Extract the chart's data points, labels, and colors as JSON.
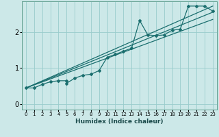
{
  "xlabel": "Humidex (Indice chaleur)",
  "bg_color": "#cce8e8",
  "grid_color": "#99cccc",
  "line_color": "#1a6e6e",
  "x_data": [
    0,
    1,
    2,
    3,
    4,
    5,
    5,
    6,
    7,
    8,
    9,
    10,
    11,
    12,
    13,
    14,
    15,
    16,
    17,
    18,
    19,
    20,
    21,
    22,
    23
  ],
  "y_main": [
    0.45,
    0.45,
    0.55,
    0.62,
    0.65,
    0.65,
    0.58,
    0.72,
    0.8,
    0.83,
    0.93,
    1.3,
    1.38,
    1.47,
    1.55,
    2.32,
    1.92,
    1.9,
    1.92,
    2.05,
    2.08,
    2.72,
    2.72,
    2.72,
    2.58
  ],
  "line1_x": [
    0,
    23
  ],
  "line1_y": [
    0.45,
    2.72
  ],
  "line2_x": [
    0,
    23
  ],
  "line2_y": [
    0.45,
    2.55
  ],
  "line3_x": [
    0,
    23
  ],
  "line3_y": [
    0.45,
    2.35
  ],
  "ylim": [
    -0.15,
    2.85
  ],
  "xlim": [
    -0.5,
    23.5
  ],
  "yticks": [
    0,
    1,
    2
  ],
  "xticks": [
    0,
    1,
    2,
    3,
    4,
    5,
    6,
    7,
    8,
    9,
    10,
    11,
    12,
    13,
    14,
    15,
    16,
    17,
    18,
    19,
    20,
    21,
    22,
    23
  ]
}
